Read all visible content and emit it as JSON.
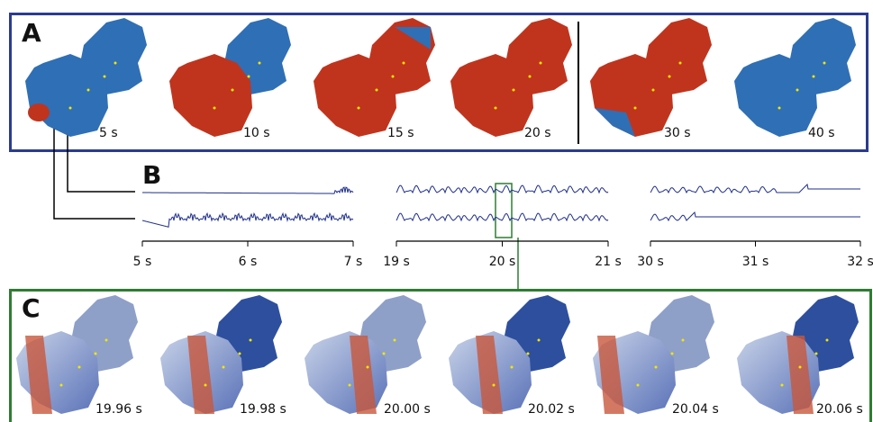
{
  "panel_a": {
    "label": "A",
    "frames": [
      "5 s",
      "10 s",
      "15 s",
      "20 s",
      "30 s",
      "40 s"
    ]
  },
  "panel_b": {
    "label": "B",
    "axes": [
      [
        "5 s",
        "6 s",
        "7 s"
      ],
      [
        "19 s",
        "20 s",
        "21 s"
      ],
      [
        "30 s",
        "31 s",
        "32 s"
      ]
    ]
  },
  "panel_c": {
    "label": "C",
    "frames": [
      "19.96 s",
      "19.98 s",
      "20.00 s",
      "20.02 s",
      "20.04 s",
      "20.06 s"
    ]
  }
}
